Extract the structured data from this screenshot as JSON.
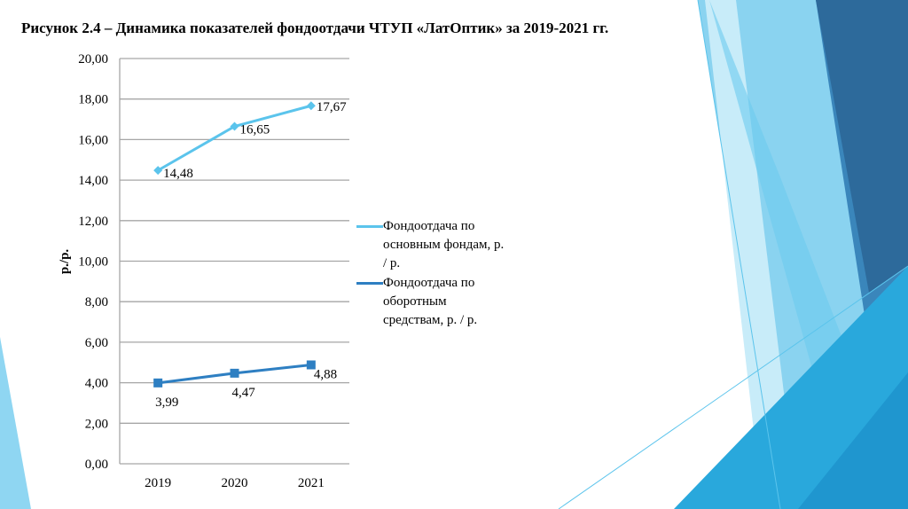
{
  "title": "Рисунок 2.4 – Динамика показателей фондоотдачи ЧТУП «ЛатОптик» за 2019-2021 гг.",
  "chart_data": {
    "type": "line",
    "title": "Рисунок 2.4 – Динамика показателей фондоотдачи ЧТУП «ЛатОптик» за 2019-2021 гг.",
    "xlabel": "",
    "ylabel": "р./р.",
    "categories": [
      "2019",
      "2020",
      "2021"
    ],
    "ylim": [
      0,
      20
    ],
    "yticks": [
      "0,00",
      "2,00",
      "4,00",
      "6,00",
      "8,00",
      "10,00",
      "12,00",
      "14,00",
      "16,00",
      "18,00",
      "20,00"
    ],
    "grid": true,
    "legend_position": "right",
    "series": [
      {
        "name": "Фондоотдача по основным фондам, р. / р.",
        "values": [
          14.48,
          16.65,
          17.67
        ],
        "labels": [
          "14,48",
          "16,65",
          "17,67"
        ],
        "color": "#5bc4ec",
        "marker": "diamond"
      },
      {
        "name": "Фондоотдача по оборотным средствам, р. / р.",
        "values": [
          3.99,
          4.47,
          4.88
        ],
        "labels": [
          "3,99",
          "4,47",
          "4,88"
        ],
        "color": "#2e7fc2",
        "marker": "square"
      }
    ]
  },
  "legend": {
    "items": [
      {
        "lines": [
          "Фондоотдача по",
          "основным фондам, р.",
          "/ р."
        ]
      },
      {
        "lines": [
          "Фондоотдача по",
          "оборотным",
          "средствам, р. / р."
        ]
      }
    ]
  }
}
